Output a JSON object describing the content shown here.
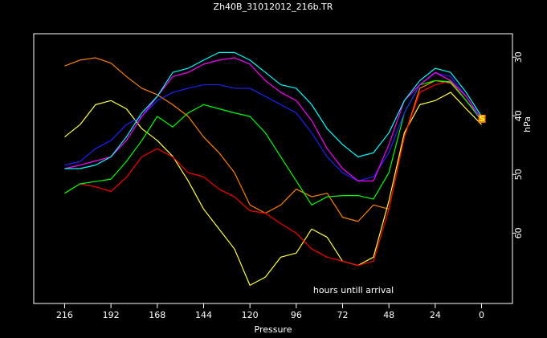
{
  "chart_data": {
    "type": "line",
    "title": "Zh40B_31012012_216b.TR",
    "x_label": "Pressure",
    "y_label": "hPa",
    "annotations": [
      "hours untill arrival",
      "S"
    ],
    "x": [
      216,
      208,
      200,
      192,
      184,
      176,
      168,
      160,
      152,
      144,
      136,
      128,
      120,
      112,
      104,
      96,
      88,
      80,
      72,
      64,
      56,
      48,
      40,
      32,
      24,
      16,
      8,
      0
    ],
    "xlim": [
      232,
      -16
    ],
    "xticks": [
      216,
      192,
      168,
      144,
      120,
      96,
      72,
      48,
      24,
      0
    ],
    "ylim": [
      26,
      72
    ],
    "yticks": [
      30,
      40,
      50,
      60
    ],
    "y_inverted": true,
    "series": [
      {
        "color": "#ff8000",
        "values": [
          31.5,
          30.5,
          30.1,
          31,
          33.3,
          35.3,
          36.4,
          38.1,
          40.1,
          43.6,
          46.3,
          49.7,
          55.2,
          56.6,
          55.2,
          52.5,
          53.8,
          53.2,
          57.3,
          58,
          55.2,
          55.9,
          43.6,
          35.3,
          34,
          34.4,
          37.4,
          40.5
        ]
      },
      {
        "color": "#ffff40",
        "values": [
          43.6,
          41.5,
          38.1,
          37.4,
          38.8,
          42.2,
          44.2,
          46.9,
          51.1,
          55.9,
          59.3,
          62.7,
          68.9,
          67.5,
          64.1,
          63.4,
          59.3,
          60.7,
          64.8,
          65.5,
          64.1,
          54.5,
          42.9,
          38.1,
          37.4,
          36,
          38.8,
          41.5
        ]
      },
      {
        "color": "#ff0000",
        "values": [
          53.2,
          51.6,
          52.1,
          52.9,
          50.5,
          47,
          45.6,
          47,
          49.7,
          50.4,
          52.5,
          53.8,
          56.2,
          56.6,
          58.4,
          60,
          62.7,
          64.1,
          64.8,
          65.5,
          64.8,
          55.9,
          43.6,
          36,
          34.7,
          34,
          37.4,
          40.8
        ]
      },
      {
        "color": "#00ff00",
        "values": [
          53.2,
          51.6,
          51.2,
          50.8,
          47.8,
          44.2,
          40.1,
          41.9,
          39.5,
          38.1,
          38.8,
          39.5,
          40.1,
          42.9,
          47,
          51.1,
          55.2,
          53.8,
          53.6,
          53.6,
          54.2,
          49.7,
          39.5,
          34.7,
          34,
          34.2,
          37.4,
          40.8
        ]
      },
      {
        "color": "#2020ff",
        "values": [
          48.4,
          47.8,
          45.6,
          44.2,
          41.5,
          40.1,
          37.4,
          36,
          35.3,
          34.7,
          34.7,
          35.3,
          35.3,
          36.7,
          38.1,
          39.5,
          42.9,
          47,
          49.7,
          51.1,
          50.4,
          46.3,
          39.5,
          34.7,
          32.7,
          33.3,
          36.7,
          40.8
        ]
      },
      {
        "color": "#ff00ff",
        "values": [
          49,
          48.4,
          47.7,
          47,
          44.2,
          40.1,
          36.7,
          33.3,
          32.6,
          31.2,
          30.5,
          30.1,
          31.2,
          34,
          36,
          37.4,
          40.8,
          45.6,
          49,
          51.1,
          51.1,
          44.9,
          37.4,
          34.7,
          32.6,
          34,
          36.7,
          40.5
        ]
      },
      {
        "color": "#00ffff",
        "values": [
          49,
          49,
          48.4,
          47,
          43.6,
          39.5,
          36.7,
          32.6,
          31.9,
          30.5,
          29.2,
          29.2,
          30.5,
          32.6,
          34.7,
          35.3,
          38.1,
          42.2,
          44.9,
          47,
          46.3,
          42.9,
          37.4,
          34,
          31.9,
          32.6,
          36,
          40.1
        ]
      }
    ]
  }
}
